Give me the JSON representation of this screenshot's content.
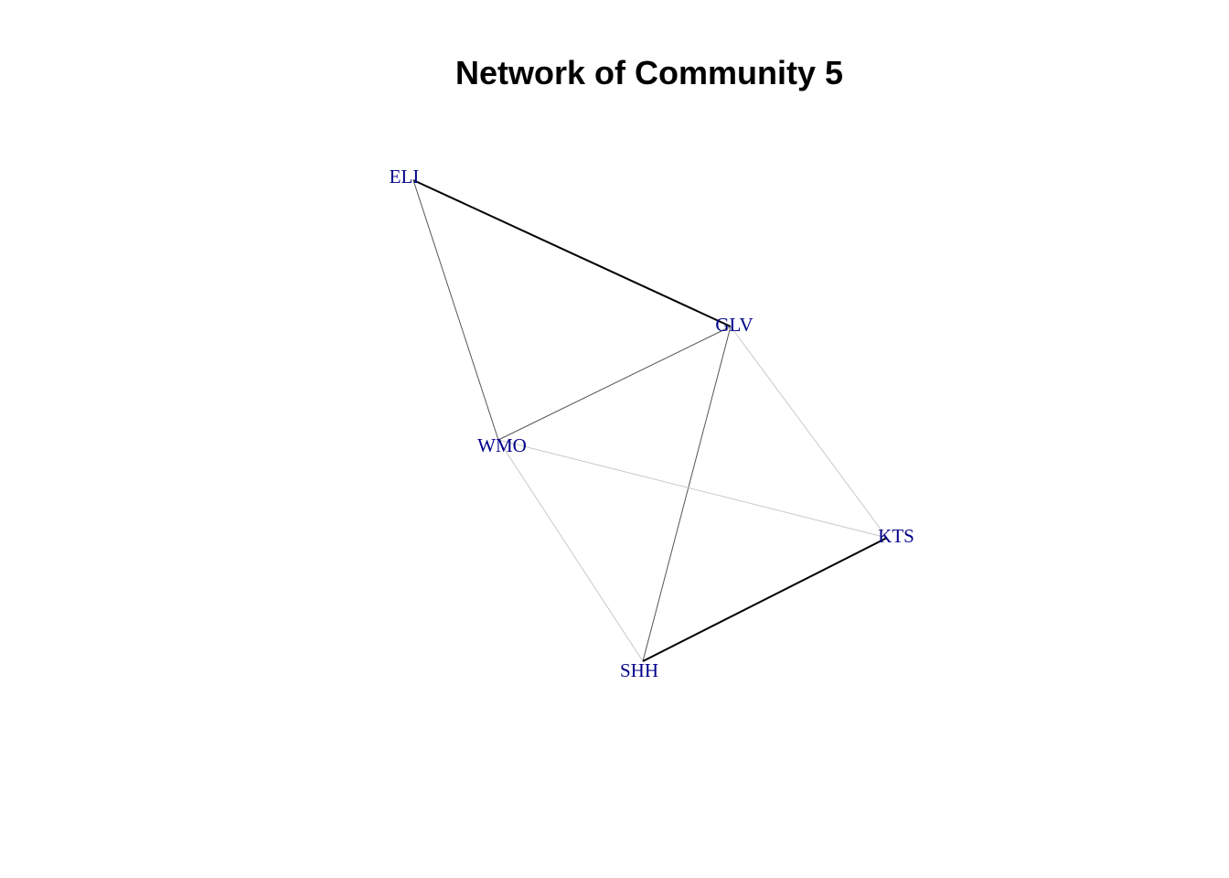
{
  "title": "Network of Community 5",
  "colors": {
    "node_label": "#00008b",
    "edge_strong": "#000000",
    "edge_medium": "#555555",
    "edge_weak": "#c8c8c8"
  },
  "nodes": [
    {
      "id": "ELI",
      "label": "ELI"
    },
    {
      "id": "GLV",
      "label": "GLV"
    },
    {
      "id": "WMO",
      "label": "WMO"
    },
    {
      "id": "KTS",
      "label": "KTS"
    },
    {
      "id": "SHH",
      "label": "SHH"
    }
  ],
  "edges": [
    {
      "source": "ELI",
      "target": "GLV",
      "strength": "strong"
    },
    {
      "source": "ELI",
      "target": "WMO",
      "strength": "medium"
    },
    {
      "source": "GLV",
      "target": "WMO",
      "strength": "medium"
    },
    {
      "source": "GLV",
      "target": "SHH",
      "strength": "medium"
    },
    {
      "source": "GLV",
      "target": "KTS",
      "strength": "weak"
    },
    {
      "source": "WMO",
      "target": "KTS",
      "strength": "weak"
    },
    {
      "source": "WMO",
      "target": "SHH",
      "strength": "weak"
    },
    {
      "source": "SHH",
      "target": "KTS",
      "strength": "strong"
    }
  ]
}
